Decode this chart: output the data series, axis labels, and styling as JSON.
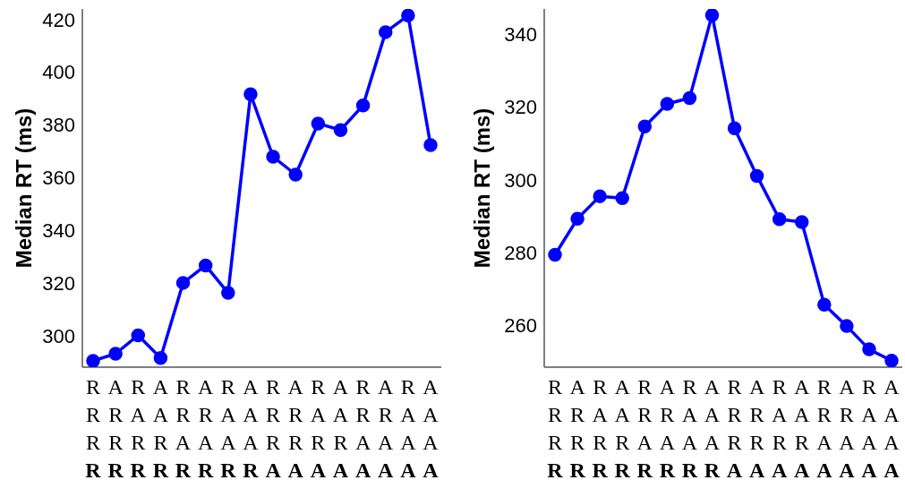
{
  "chart_data": [
    {
      "type": "line",
      "ylabel": "Median RT (ms)",
      "categories": [
        "R\nR\nR\nR",
        "A\nR\nR\nR",
        "R\nA\nR\nR",
        "A\nA\nR\nR",
        "R\nR\nA\nR",
        "A\nR\nA\nR",
        "R\nA\nA\nR",
        "A\nA\nA\nR",
        "R\nR\nR\nA",
        "A\nR\nR\nA",
        "R\nA\nR\nA",
        "A\nA\nR\nA",
        "R\nR\nA\nA",
        "A\nR\nA\nA",
        "R\nA\nA\nA",
        "A\nA\nA\nA"
      ],
      "series": [
        {
          "color": "#0000ff",
          "values": [
            290.4,
            293.1,
            300.1,
            291.5,
            320,
            326.6,
            316.2,
            391.6,
            367.9,
            361.1,
            380.5,
            378,
            387.4,
            415.2,
            421.5,
            372.3
          ]
        }
      ],
      "ylim": [
        288,
        424
      ],
      "yticks": [
        300,
        320,
        340,
        360,
        380,
        400,
        420
      ],
      "grid": false,
      "legend": false,
      "marker": "circle",
      "line_style": "solid"
    },
    {
      "type": "line",
      "ylabel": "Median RT (ms)",
      "categories": [
        "R\nR\nR\nR",
        "A\nR\nR\nR",
        "R\nA\nR\nR",
        "A\nA\nR\nR",
        "R\nR\nA\nR",
        "A\nR\nA\nR",
        "R\nA\nA\nR",
        "A\nA\nA\nR",
        "R\nR\nR\nA",
        "A\nR\nR\nA",
        "R\nA\nR\nA",
        "A\nA\nR\nA",
        "R\nR\nA\nA",
        "A\nR\nA\nA",
        "R\nA\nA\nA",
        "A\nA\nA\nA"
      ],
      "series": [
        {
          "color": "#0000ff",
          "values": [
            279.4,
            289.3,
            295.5,
            295,
            314.7,
            320.9,
            322.5,
            345.3,
            314.2,
            301.1,
            289.2,
            288.4,
            265.7,
            259.8,
            253.4,
            250.3
          ]
        }
      ],
      "ylim": [
        248.5,
        347
      ],
      "yticks": [
        260,
        280,
        300,
        320,
        340
      ],
      "grid": false,
      "legend": false,
      "marker": "circle",
      "line_style": "solid"
    }
  ]
}
